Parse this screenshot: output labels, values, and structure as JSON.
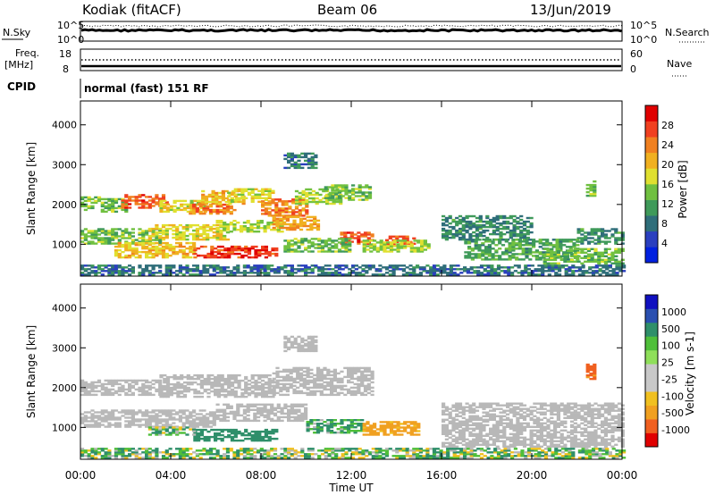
{
  "header": {
    "station": "Kodiak (fitACF)",
    "beam": "Beam 06",
    "date": "13/Jun/2019"
  },
  "noise_panel": {
    "left_label": "N.Sky",
    "right_label": "N.Search",
    "tick_top": "10^5",
    "tick_bottom": "10^0"
  },
  "freq_panel": {
    "left_label_1": "Freq.",
    "left_label_2": "[MHz]",
    "left_ticks": [
      "18",
      "8"
    ],
    "right_label": "Nave",
    "right_ticks": [
      "60",
      "0"
    ]
  },
  "cpid_panel": {
    "label": "CPID",
    "mode": "normal (fast) 151 RF"
  },
  "axes": {
    "ylabel": "Slant Range [km]",
    "xlabel": "Time UT",
    "yticks": [
      "1000",
      "2000",
      "3000",
      "4000"
    ],
    "xticks": [
      "00:00",
      "04:00",
      "08:00",
      "12:00",
      "16:00",
      "20:00",
      "00:00"
    ]
  },
  "colors": {
    "power_scale": [
      "#0020e0",
      "#2a3fbf",
      "#2f6e7a",
      "#3f9a5a",
      "#70c040",
      "#e0e030",
      "#f0b020",
      "#f08020",
      "#f04020",
      "#e00000"
    ],
    "velocity_scale": [
      "#1010c0",
      "#2a4fb0",
      "#2f8f6a",
      "#4fbf3a",
      "#8fdf5a",
      "#c8c8c8",
      "#c8c8c8",
      "#f0c020",
      "#f0a020",
      "#f06020",
      "#e00000"
    ],
    "ground_scatter": "#b8b8b8"
  },
  "chart_data": [
    {
      "type": "heatmap",
      "title": "Power",
      "colorbar_label": "Power [dB]",
      "colorbar_ticks": [
        "28",
        "24",
        "20",
        "16",
        "12",
        "8",
        "4"
      ],
      "clim": [
        0,
        32
      ],
      "xlabel": "",
      "ylabel": "Slant Range [km]",
      "xlim_hours": [
        0,
        24
      ],
      "ylim_km": [
        200,
        4600
      ],
      "patches": [
        {
          "t0": 0.0,
          "t1": 2.0,
          "r0": 1800,
          "r1": 2200,
          "value": 14
        },
        {
          "t0": 1.8,
          "t1": 3.8,
          "r0": 1900,
          "r1": 2250,
          "value": 26
        },
        {
          "t0": 3.5,
          "t1": 5.5,
          "r0": 1800,
          "r1": 2100,
          "value": 18
        },
        {
          "t0": 4.8,
          "t1": 6.8,
          "r0": 1750,
          "r1": 2000,
          "value": 24
        },
        {
          "t0": 5.2,
          "t1": 7.2,
          "r0": 2000,
          "r1": 2350,
          "value": 20
        },
        {
          "t0": 6.5,
          "t1": 8.5,
          "r0": 2050,
          "r1": 2400,
          "value": 18
        },
        {
          "t0": 8.0,
          "t1": 10.0,
          "r0": 1700,
          "r1": 2150,
          "value": 24
        },
        {
          "t0": 9.5,
          "t1": 11.5,
          "r0": 2000,
          "r1": 2400,
          "value": 16
        },
        {
          "t0": 10.8,
          "t1": 12.8,
          "r0": 2100,
          "r1": 2500,
          "value": 14
        },
        {
          "t0": 0.0,
          "t1": 3.5,
          "r0": 1000,
          "r1": 1400,
          "value": 14
        },
        {
          "t0": 3.0,
          "t1": 6.5,
          "r0": 1100,
          "r1": 1500,
          "value": 18
        },
        {
          "t0": 6.0,
          "t1": 9.0,
          "r0": 1300,
          "r1": 1600,
          "value": 16
        },
        {
          "t0": 8.5,
          "t1": 10.5,
          "r0": 1350,
          "r1": 1700,
          "value": 22
        },
        {
          "t0": 11.5,
          "t1": 13.0,
          "r0": 1000,
          "r1": 1300,
          "value": 26
        },
        {
          "t0": 13.5,
          "t1": 14.8,
          "r0": 950,
          "r1": 1200,
          "value": 26
        },
        {
          "t0": 1.5,
          "t1": 5.0,
          "r0": 650,
          "r1": 1050,
          "value": 20
        },
        {
          "t0": 5.0,
          "t1": 8.7,
          "r0": 650,
          "r1": 950,
          "value": 28
        },
        {
          "t0": 9.0,
          "t1": 12.0,
          "r0": 800,
          "r1": 1150,
          "value": 14
        },
        {
          "t0": 12.5,
          "t1": 15.5,
          "r0": 800,
          "r1": 1100,
          "value": 16
        },
        {
          "t0": 16.0,
          "t1": 20.0,
          "r0": 1100,
          "r1": 1700,
          "value": 10
        },
        {
          "t0": 17.0,
          "t1": 22.0,
          "r0": 600,
          "r1": 1100,
          "value": 12
        },
        {
          "t0": 20.5,
          "t1": 24.0,
          "r0": 500,
          "r1": 900,
          "value": 14
        },
        {
          "t0": 22.0,
          "t1": 24.0,
          "r0": 1000,
          "r1": 1400,
          "value": 10
        },
        {
          "t0": 22.4,
          "t1": 22.8,
          "r0": 2200,
          "r1": 2600,
          "value": 14
        },
        {
          "t0": 9.0,
          "t1": 10.4,
          "r0": 2900,
          "r1": 3300,
          "value": 8
        },
        {
          "t0": 0.0,
          "t1": 24.0,
          "r0": 220,
          "r1": 450,
          "value": 8
        }
      ]
    },
    {
      "type": "heatmap",
      "title": "Velocity",
      "colorbar_label": "Velocity [m s-1]",
      "colorbar_ticks": [
        "1000",
        "500",
        "100",
        "25",
        "-25",
        "-100",
        "-500",
        "-1000"
      ],
      "xlabel": "Time UT",
      "ylabel": "Slant Range [km]",
      "xlim_hours": [
        0,
        24
      ],
      "ylim_km": [
        200,
        4600
      ],
      "patches": [
        {
          "t0": 0.0,
          "t1": 3.5,
          "r0": 1800,
          "r1": 2200,
          "value": 0
        },
        {
          "t0": 3.5,
          "t1": 8.5,
          "r0": 1750,
          "r1": 2300,
          "value": 0
        },
        {
          "t0": 8.5,
          "t1": 13.0,
          "r0": 1800,
          "r1": 2500,
          "value": 0
        },
        {
          "t0": 0.0,
          "t1": 6.0,
          "r0": 1000,
          "r1": 1450,
          "value": 0
        },
        {
          "t0": 6.0,
          "t1": 10.0,
          "r0": 1150,
          "r1": 1600,
          "value": 0
        },
        {
          "t0": 5.0,
          "t1": 8.7,
          "r0": 650,
          "r1": 950,
          "value": 250
        },
        {
          "t0": 3.0,
          "t1": 5.0,
          "r0": 800,
          "r1": 1000,
          "value": 60
        },
        {
          "t0": 10.0,
          "t1": 12.5,
          "r0": 850,
          "r1": 1200,
          "value": 150
        },
        {
          "t0": 12.5,
          "t1": 15.0,
          "r0": 800,
          "r1": 1150,
          "value": -200
        },
        {
          "t0": 0.0,
          "t1": 24.0,
          "r0": 220,
          "r1": 450,
          "value": 60
        },
        {
          "t0": 16.0,
          "t1": 24.0,
          "r0": 500,
          "r1": 1600,
          "value": 0
        },
        {
          "t0": 22.4,
          "t1": 22.8,
          "r0": 2200,
          "r1": 2600,
          "value": -600
        },
        {
          "t0": 9.0,
          "t1": 10.4,
          "r0": 2900,
          "r1": 3300,
          "value": 0
        }
      ]
    }
  ]
}
